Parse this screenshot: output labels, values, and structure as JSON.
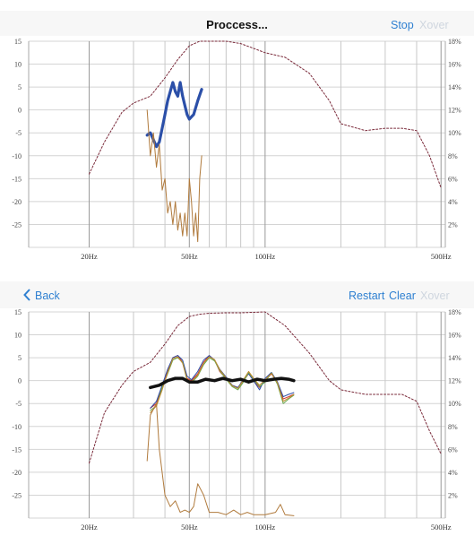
{
  "colors": {
    "accent": "#2f80d1",
    "disabled": "#cfd6df",
    "target": "#7a2a3a",
    "measure_blue": "#2b4fa8",
    "distortion": "#b07a3c",
    "avg": "#111111"
  },
  "top_bar": {
    "title": "Proccess...",
    "stop_label": "Stop",
    "xover_label": "Xover"
  },
  "bottom_bar": {
    "back_label": "Back",
    "back_icon": "chevron-left-icon",
    "restart_label": "Restart",
    "clear_label": "Clear",
    "xover_label": "Xover"
  },
  "chart_data": [
    {
      "type": "line",
      "xscale": "log",
      "xlim": [
        11.5,
        520
      ],
      "ylim": [
        -30,
        15
      ],
      "y2lim": [
        0,
        18
      ],
      "y_ticks": [
        15,
        10,
        5,
        0,
        -5,
        -10,
        -15,
        -20,
        -25
      ],
      "y_tick_labels": [
        "15",
        "10",
        "5",
        "0",
        "-5",
        "-10",
        "-15",
        "-20",
        "-25"
      ],
      "y2_ticks": [
        18,
        16,
        14,
        12,
        10,
        8,
        6,
        4,
        2
      ],
      "y2_tick_labels": [
        "18%",
        "16%",
        "14%",
        "12%",
        "10%",
        "8%",
        "6%",
        "4%",
        "2%"
      ],
      "x_tick_labels": [
        {
          "x": 20,
          "label": "20Hz"
        },
        {
          "x": 50,
          "label": "50Hz"
        },
        {
          "x": 100,
          "label": "100Hz"
        },
        {
          "x": 500,
          "label": "500Hz"
        }
      ],
      "grid": true,
      "series": [
        {
          "role": "target",
          "axis": "y",
          "style": "dashed",
          "color": "#7a2a3a",
          "x": [
            20,
            23,
            27,
            30,
            35,
            40,
            45,
            50,
            55,
            60,
            70,
            80,
            100,
            120,
            150,
            180,
            200,
            250,
            300,
            350,
            400,
            450,
            500
          ],
          "y": [
            -14,
            -7,
            -0.5,
            1.5,
            3,
            7,
            11,
            14,
            15,
            15,
            15,
            14.5,
            12.5,
            11.5,
            8,
            2,
            -3,
            -4.5,
            -4,
            -4,
            -4.5,
            -10,
            -17
          ]
        },
        {
          "role": "measurement",
          "axis": "y",
          "style": "thick",
          "color": "#2b4fa8",
          "x": [
            34,
            35,
            36,
            37,
            38,
            39,
            40,
            41,
            42,
            43,
            44,
            45,
            46,
            47,
            48,
            49,
            50,
            52,
            54,
            56
          ],
          "y": [
            -5.5,
            -5,
            -6.5,
            -8,
            -7,
            -4,
            -1,
            2,
            4,
            6,
            4,
            3,
            6,
            3,
            1,
            -1,
            -2,
            -1,
            2,
            4.5
          ]
        },
        {
          "role": "distortion",
          "axis": "y2",
          "style": "thin",
          "color": "#b07a3c",
          "x": [
            34,
            35,
            36,
            37,
            38,
            39,
            40,
            41,
            42,
            43,
            44,
            45,
            46,
            47,
            48,
            49,
            50,
            51,
            52,
            53,
            54,
            55,
            56
          ],
          "y": [
            12,
            8,
            10,
            7,
            9,
            5,
            6,
            3,
            4,
            2,
            4,
            1.5,
            3,
            1,
            3,
            1,
            6,
            4,
            1,
            3,
            0.5,
            6,
            8
          ]
        }
      ]
    },
    {
      "type": "line",
      "xscale": "log",
      "xlim": [
        11.5,
        520
      ],
      "ylim": [
        -30,
        15
      ],
      "y2lim": [
        0,
        18
      ],
      "y_ticks": [
        15,
        10,
        5,
        0,
        -5,
        -10,
        -15,
        -20,
        -25
      ],
      "y_tick_labels": [
        "15",
        "10",
        "5",
        "0",
        "-5",
        "-10",
        "-15",
        "-20",
        "-25"
      ],
      "y2_ticks": [
        18,
        16,
        14,
        12,
        10,
        8,
        6,
        4,
        2
      ],
      "y2_tick_labels": [
        "18%",
        "16%",
        "14%",
        "12%",
        "10%",
        "8%",
        "6%",
        "4%",
        "2%"
      ],
      "x_tick_labels": [
        {
          "x": 20,
          "label": "20Hz"
        },
        {
          "x": 50,
          "label": "50Hz"
        },
        {
          "x": 100,
          "label": "100Hz"
        },
        {
          "x": 500,
          "label": "500Hz"
        }
      ],
      "grid": true,
      "series": [
        {
          "role": "target",
          "axis": "y",
          "style": "dashed",
          "color": "#7a2a3a",
          "x": [
            20,
            23,
            27,
            30,
            35,
            40,
            45,
            50,
            55,
            60,
            70,
            80,
            100,
            120,
            150,
            180,
            200,
            250,
            300,
            350,
            400,
            450,
            500
          ],
          "y": [
            -18,
            -7,
            -1,
            2,
            4,
            8,
            12,
            14,
            14.5,
            14.7,
            14.8,
            14.8,
            15,
            12,
            6,
            0,
            -2,
            -3,
            -3,
            -3,
            -4.5,
            -11,
            -16
          ]
        },
        {
          "role": "measurement",
          "axis": "y",
          "style": "thin",
          "color": "#d03030",
          "x": [
            35,
            37,
            39,
            41,
            43,
            45,
            47,
            49,
            51,
            54,
            57,
            60,
            63,
            66,
            70,
            74,
            78,
            82,
            86,
            90,
            95,
            100,
            106,
            112,
            118,
            124,
            130
          ],
          "y": [
            -6,
            -5,
            -1,
            2,
            5,
            5.5,
            4,
            0.5,
            0,
            1.5,
            4,
            5.5,
            4.5,
            2,
            0.5,
            -1,
            -1.5,
            0,
            1.5,
            0,
            -1.5,
            0,
            1.5,
            -0.5,
            -4,
            -3.5,
            -3
          ]
        },
        {
          "role": "measurement",
          "axis": "y",
          "style": "thin",
          "color": "#2b4fa8",
          "x": [
            35,
            37,
            39,
            41,
            43,
            45,
            47,
            49,
            51,
            54,
            57,
            60,
            63,
            66,
            70,
            74,
            78,
            82,
            86,
            90,
            95,
            100,
            106,
            112,
            118,
            124,
            130
          ],
          "y": [
            -6,
            -4.5,
            -1,
            2.5,
            5,
            5.5,
            4.5,
            1,
            0.2,
            2,
            4.5,
            5.5,
            4.5,
            2.5,
            0.8,
            -1,
            -1.5,
            0.3,
            1.5,
            0,
            -2,
            0.5,
            1.8,
            -0.3,
            -3.5,
            -3,
            -2.6
          ]
        },
        {
          "role": "measurement",
          "axis": "y",
          "style": "thin",
          "color": "#6aa84f",
          "x": [
            35,
            37,
            39,
            41,
            43,
            45,
            47,
            49,
            51,
            54,
            57,
            60,
            63,
            66,
            70,
            74,
            78,
            82,
            86,
            90,
            95,
            100,
            106,
            112,
            118,
            124,
            130
          ],
          "y": [
            -6.5,
            -5.5,
            -1.5,
            1.5,
            4.5,
            5,
            4,
            0,
            -0.5,
            1,
            3.5,
            5,
            4.3,
            2.2,
            0.3,
            -1.3,
            -2,
            -0.3,
            1.8,
            0.3,
            -1.3,
            -0.3,
            1.7,
            -0.8,
            -5,
            -4,
            -3.2
          ]
        },
        {
          "role": "measurement",
          "axis": "y",
          "style": "thin",
          "color": "#c08a2e",
          "x": [
            35,
            37,
            39,
            41,
            43,
            45,
            47,
            49,
            51,
            54,
            57,
            60,
            63,
            66,
            70,
            74,
            78,
            82,
            86,
            90,
            95,
            100,
            106,
            112,
            118,
            124,
            130
          ],
          "y": [
            -7,
            -5.5,
            -2,
            1.8,
            4.8,
            5.2,
            3.8,
            0.3,
            -0.2,
            1.2,
            3.8,
            5.2,
            4.6,
            2.4,
            0.6,
            -1.1,
            -1.7,
            0.2,
            2,
            0.5,
            -1,
            0.2,
            1.6,
            -0.5,
            -4.5,
            -3.8,
            -3
          ]
        },
        {
          "role": "average",
          "axis": "y",
          "style": "thick",
          "color": "#111111",
          "x": [
            35,
            38,
            41,
            44,
            47,
            50,
            54,
            58,
            63,
            68,
            74,
            80,
            86,
            93,
            100,
            108,
            116,
            124,
            130
          ],
          "y": [
            -1.5,
            -1,
            0,
            0.5,
            0.5,
            -0.3,
            -0.3,
            0.3,
            0,
            0.5,
            0,
            0.3,
            -0.3,
            0.3,
            0,
            0.3,
            0.5,
            0.3,
            0
          ]
        },
        {
          "role": "distortion",
          "axis": "y2",
          "style": "thin",
          "color": "#b07a3c",
          "x": [
            34,
            35,
            36,
            37,
            38,
            40,
            42,
            44,
            46,
            48,
            50,
            52,
            54,
            57,
            60,
            65,
            70,
            75,
            80,
            85,
            90,
            100,
            110,
            115,
            120,
            130
          ],
          "y": [
            5,
            9,
            9.5,
            10,
            6,
            2,
            1,
            1.5,
            0.5,
            0.7,
            0.5,
            1,
            3,
            2,
            0.5,
            0.5,
            0.3,
            0.7,
            0.3,
            0.5,
            0.3,
            0.3,
            0.5,
            1.2,
            0.3,
            0.2
          ]
        }
      ]
    }
  ]
}
